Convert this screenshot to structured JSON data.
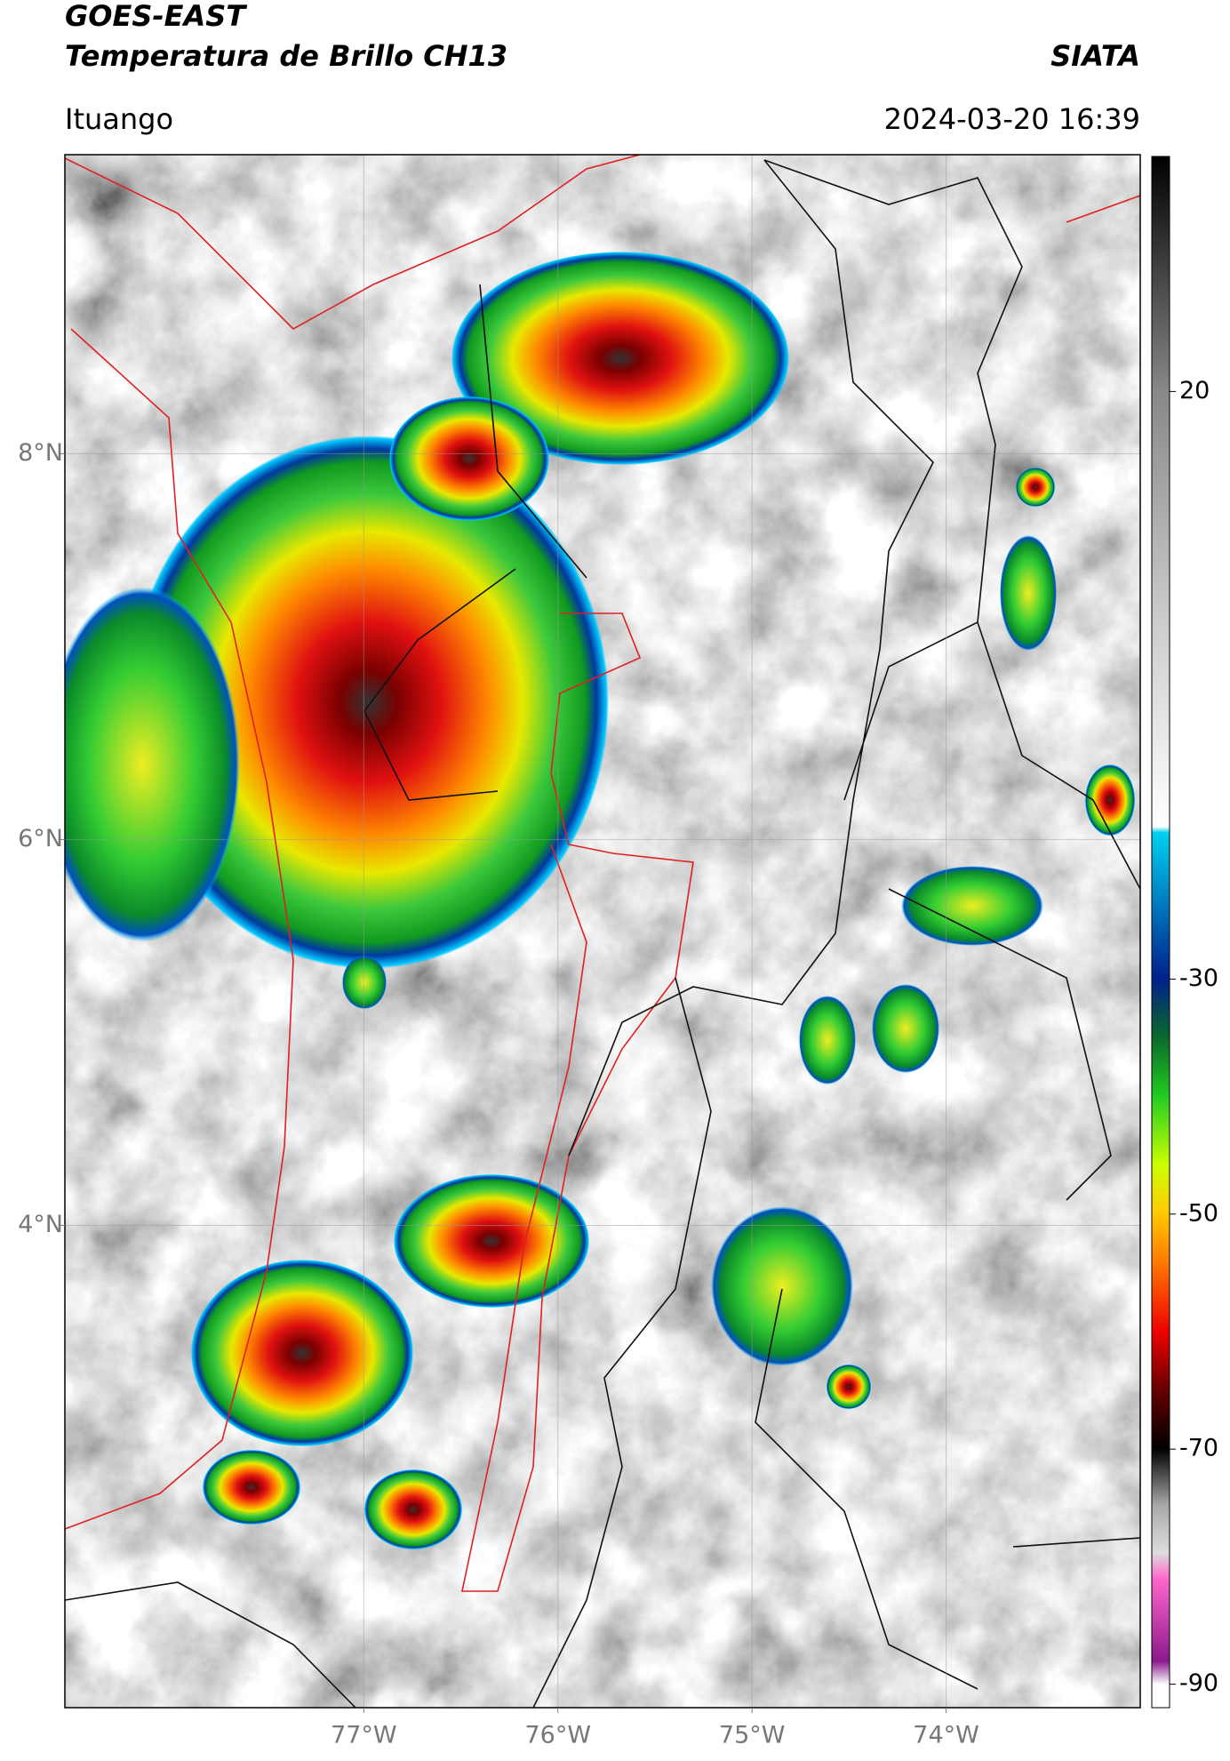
{
  "header": {
    "title": "GOES-EAST",
    "subtitle": "Temperatura de Brillo CH13",
    "source": "SIATA",
    "location": "Ituango",
    "datetime": "2024-03-20 16:39"
  },
  "map": {
    "xlim": [
      -78.54,
      -73.0
    ],
    "ylim": [
      1.5,
      9.55
    ],
    "xticks": [
      {
        "value": -77,
        "label": "77°W"
      },
      {
        "value": -76,
        "label": "76°W"
      },
      {
        "value": -75,
        "label": "75°W"
      },
      {
        "value": -74,
        "label": "74°W"
      }
    ],
    "yticks": [
      {
        "value": 8,
        "label": "8°N"
      },
      {
        "value": 6,
        "label": "6°N"
      },
      {
        "value": 4,
        "label": "4°N"
      }
    ],
    "grid": true
  },
  "colorbar": {
    "lim": [
      -92,
      40
    ],
    "ticks": [
      20,
      -30,
      -50,
      -70,
      -90
    ]
  }
}
